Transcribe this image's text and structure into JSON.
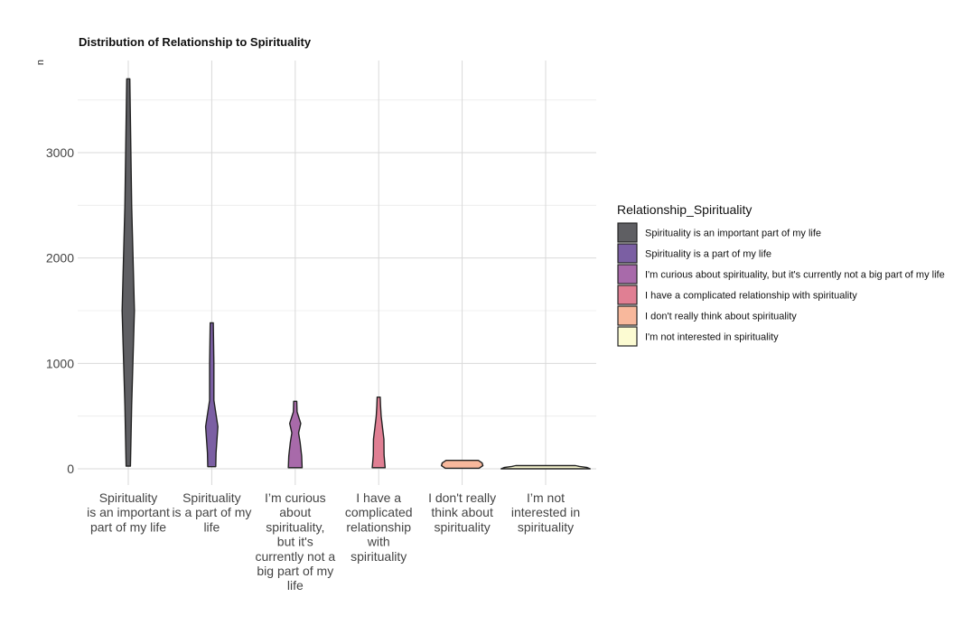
{
  "chart_data": {
    "type": "violin",
    "title": "Distribution of Relationship to Spirituality",
    "ylabel": "n",
    "xlabel": "",
    "ylim": [
      -200,
      3870
    ],
    "yticks": [
      0,
      1000,
      2000,
      3000
    ],
    "grid": true,
    "legend_position": "right",
    "legend_title": "Relationship_Spirituality",
    "categories": [
      {
        "label": "Spirituality is an important part of my life",
        "label_lines": [
          "Spirituality",
          "is an important",
          "part of my life"
        ],
        "color": "#5f5f63",
        "profile": [
          [
            25,
            0.14
          ],
          [
            600,
            0.22
          ],
          [
            1500,
            0.4
          ],
          [
            2500,
            0.22
          ],
          [
            3700,
            0.1
          ]
        ]
      },
      {
        "label": "Spirituality is a part of my life",
        "label_lines": [
          "Spirituality",
          "is a part of my",
          "life"
        ],
        "color": "#7b5fa3",
        "profile": [
          [
            20,
            0.26
          ],
          [
            150,
            0.28
          ],
          [
            400,
            0.4
          ],
          [
            650,
            0.14
          ],
          [
            1000,
            0.14
          ],
          [
            1385,
            0.1
          ]
        ]
      },
      {
        "label": "I'm curious about spirituality, but it's currently not a big part of my life",
        "label_lines": [
          "I’m curious",
          "about",
          "spirituality,",
          "but it's",
          "currently not a",
          "big part of my",
          "life"
        ],
        "color": "#a86aaa",
        "profile": [
          [
            10,
            0.45
          ],
          [
            120,
            0.42
          ],
          [
            250,
            0.32
          ],
          [
            340,
            0.22
          ],
          [
            430,
            0.36
          ],
          [
            540,
            0.12
          ],
          [
            640,
            0.1
          ]
        ]
      },
      {
        "label": "I have a complicated relationship with spirituality",
        "label_lines": [
          "I have a",
          "complicated",
          "relationship",
          "with",
          "spirituality"
        ],
        "color": "#e07f93",
        "profile": [
          [
            10,
            0.42
          ],
          [
            130,
            0.35
          ],
          [
            280,
            0.34
          ],
          [
            400,
            0.24
          ],
          [
            500,
            0.16
          ],
          [
            600,
            0.12
          ],
          [
            680,
            0.1
          ]
        ]
      },
      {
        "label": "I don't really think about spirituality",
        "label_lines": [
          "I don't really",
          "think about",
          "spirituality"
        ],
        "color": "#f8b89c",
        "profile": [
          [
            5,
            1.1
          ],
          [
            30,
            1.35
          ],
          [
            55,
            1.3
          ],
          [
            80,
            1.05
          ]
        ]
      },
      {
        "label": "I'm not interested in spirituality",
        "label_lines": [
          "I’m not",
          "interested in",
          "spirituality"
        ],
        "color": "#fcfbd2",
        "profile": [
          [
            0,
            2.9
          ],
          [
            12,
            2.7
          ],
          [
            22,
            2.2
          ],
          [
            30,
            1.95
          ]
        ]
      }
    ],
    "legend_entries": [
      "Spirituality is an important part of my life",
      "Spirituality is a part of my life",
      "I'm curious about spirituality, but it's currently not a big part of my life",
      "I have a complicated relationship with spirituality",
      "I don't really think about spirituality",
      "I'm not interested in spirituality"
    ]
  }
}
